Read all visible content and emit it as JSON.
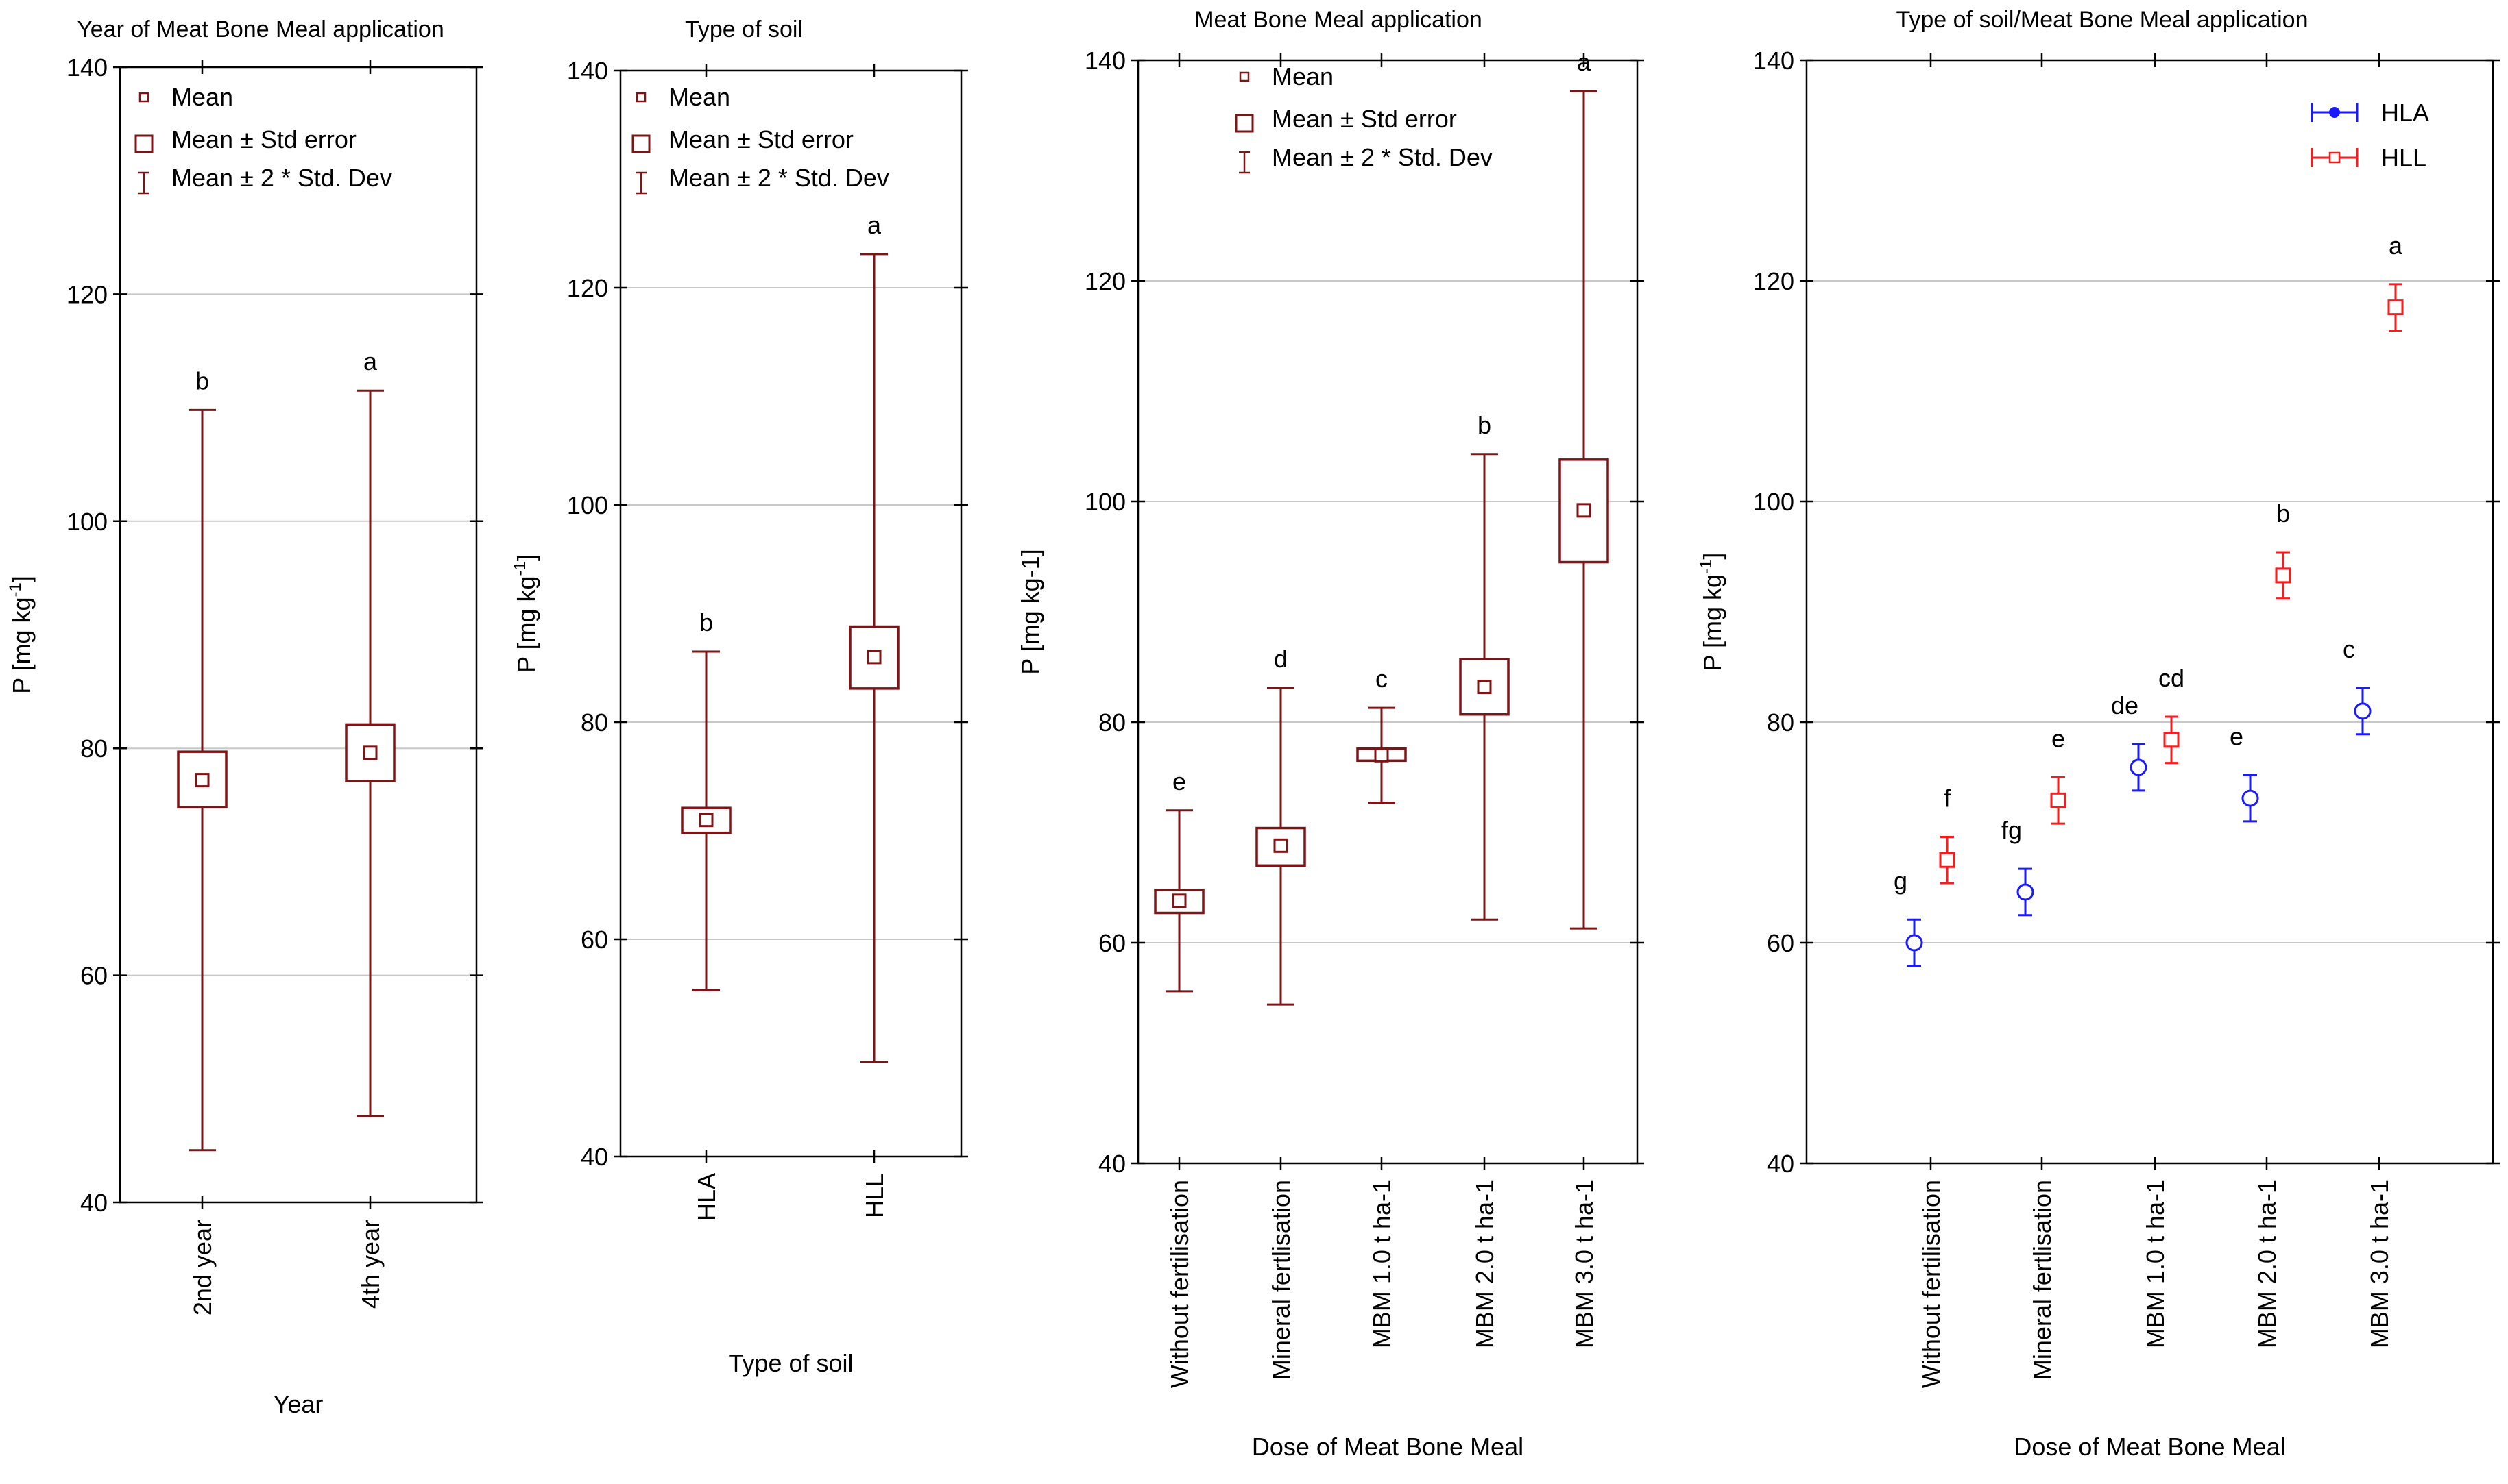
{
  "chart_data": [
    {
      "type": "box",
      "title": "Year of Meat Bone Meal application",
      "xlabel": "Year",
      "ylabel": "P [mg kg-1]",
      "ylabel_parts": {
        "base": "P [mg kg",
        "sup": "-1",
        "tail": "]"
      },
      "ylim": [
        40,
        140
      ],
      "yticks": [
        40,
        60,
        80,
        100,
        120,
        140
      ],
      "grid": true,
      "legend_position": "top-left",
      "legend": [
        "Mean",
        "Mean ± Std error",
        "Mean ± 2 * Std. Dev"
      ],
      "color": "#7f1416",
      "categories": [
        "2nd year",
        "4th year"
      ],
      "mean": [
        77.2,
        79.6
      ],
      "se_low": [
        74.8,
        77.1
      ],
      "se_high": [
        79.7,
        82.1
      ],
      "sd2_low": [
        44.6,
        47.6
      ],
      "sd2_high": [
        109.8,
        111.5
      ],
      "letters": [
        "b",
        "a"
      ]
    },
    {
      "type": "box",
      "title": "Type of soil",
      "xlabel": "Type of soil",
      "ylabel": "P [mg kg-1]",
      "ylabel_parts": {
        "base": "P [mg kg",
        "sup": "-1",
        "tail": "]"
      },
      "ylim": [
        40,
        140
      ],
      "yticks": [
        40,
        60,
        80,
        100,
        120,
        140
      ],
      "grid": true,
      "legend_position": "top-left",
      "legend": [
        "Mean",
        "Mean ± Std error",
        "Mean ± 2 * Std. Dev"
      ],
      "color": "#7f1416",
      "categories": [
        "HLA",
        "HLL"
      ],
      "mean": [
        71.0,
        86.0
      ],
      "se_low": [
        69.8,
        83.1
      ],
      "se_high": [
        72.1,
        88.8
      ],
      "sd2_low": [
        55.3,
        48.7
      ],
      "sd2_high": [
        86.5,
        123.1
      ],
      "letters": [
        "b",
        "a"
      ]
    },
    {
      "type": "box",
      "title": "Meat Bone Meal application",
      "xlabel": "Dose of Meat Bone Meal",
      "ylabel": "P [mg kg-1]",
      "ylim": [
        40,
        140
      ],
      "yticks": [
        40,
        60,
        80,
        100,
        120,
        140
      ],
      "grid": true,
      "legend_position": "top-center",
      "legend": [
        "Mean",
        "Mean ± Std error",
        "Mean ± 2 * Std. Dev"
      ],
      "color": "#7f1416",
      "categories": [
        "Without fertilisation",
        "Mineral fertlisation",
        "MBM 1.0 t ha-1",
        "MBM 2.0 t ha-1",
        "MBM 3.0 t ha-1"
      ],
      "mean": [
        63.8,
        68.8,
        77.0,
        83.2,
        99.2
      ],
      "se_low": [
        62.7,
        67.0,
        76.5,
        80.7,
        94.5
      ],
      "se_high": [
        64.8,
        70.4,
        77.6,
        85.7,
        103.8
      ],
      "sd2_low": [
        55.6,
        54.4,
        72.7,
        62.1,
        61.3
      ],
      "sd2_high": [
        72.0,
        83.1,
        81.3,
        104.3,
        137.2
      ],
      "letters": [
        "e",
        "d",
        "c",
        "b",
        "a"
      ]
    },
    {
      "type": "errorbar",
      "title": "Type of soil/Meat Bone Meal application",
      "xlabel": "Dose of Meat Bone Meal",
      "ylabel": "P [mg kg-1]",
      "ylabel_parts": {
        "base": "P [mg kg",
        "sup": "-1",
        "tail": "]"
      },
      "ylim": [
        40,
        140
      ],
      "yticks": [
        40,
        60,
        80,
        100,
        120,
        140
      ],
      "grid": true,
      "legend_position": "top-right",
      "categories": [
        "Without fertilisation",
        "Mineral fertlisation",
        "MBM 1.0 t ha-1",
        "MBM 2.0 t ha-1",
        "MBM 3.0 t ha-1"
      ],
      "series": [
        {
          "name": "HLA",
          "color": "#1a1aff",
          "marker": "circle",
          "values": [
            60.0,
            64.6,
            75.9,
            73.1,
            81.0
          ],
          "err_low": [
            57.9,
            62.5,
            73.8,
            71.0,
            78.9
          ],
          "err_high": [
            62.1,
            66.7,
            78.0,
            75.2,
            83.1
          ],
          "letters": [
            "g",
            "fg",
            "de",
            "e",
            "c"
          ]
        },
        {
          "name": "HLL",
          "color": "#ff1a1a",
          "marker": "square",
          "values": [
            67.5,
            72.9,
            78.4,
            93.3,
            117.6
          ],
          "err_low": [
            65.4,
            70.8,
            76.3,
            91.2,
            115.5
          ],
          "err_high": [
            69.6,
            75.0,
            80.5,
            95.4,
            119.7
          ],
          "letters": [
            "f",
            "e",
            "cd",
            "b",
            "a"
          ]
        }
      ]
    }
  ]
}
